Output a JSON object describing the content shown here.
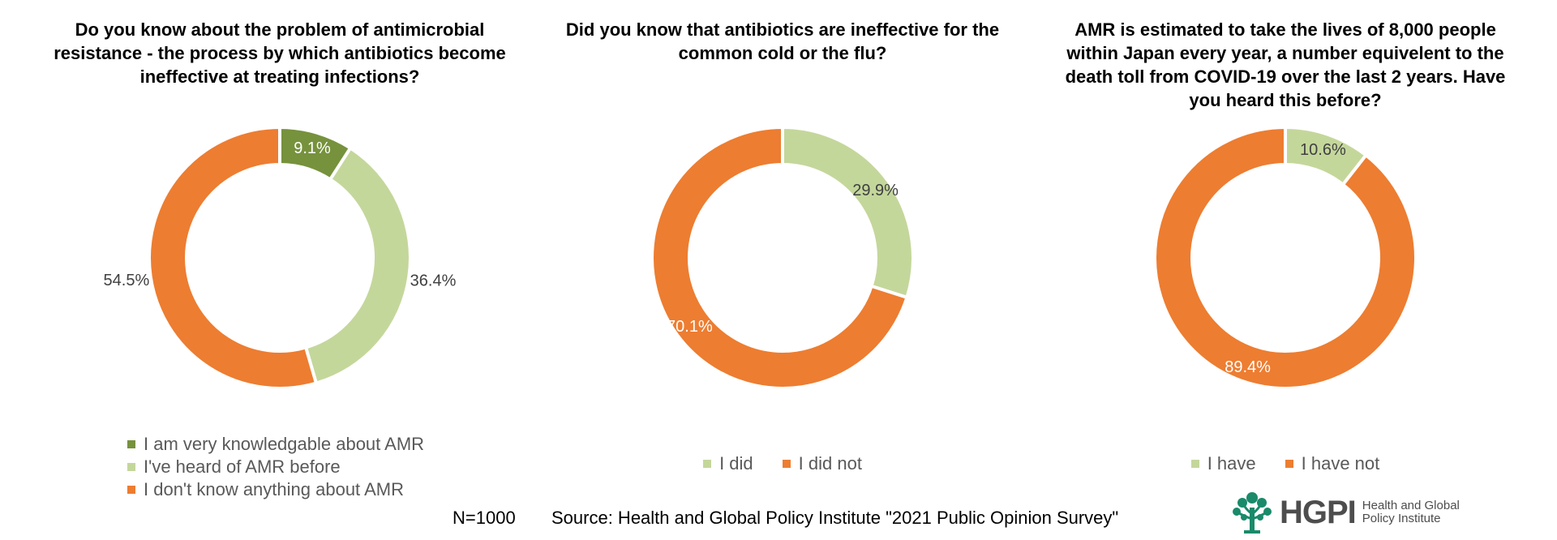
{
  "chart_data": [
    {
      "type": "donut",
      "title": "Do you know about the problem of antimicrobial resistance - the process by which antibiotics become ineffective at treating infections?",
      "slices": [
        {
          "label": "I am very knowledgable about AMR",
          "value": 9.1,
          "value_label": "9.1%",
          "color": "#76923c",
          "label_color": "#ffffff"
        },
        {
          "label": "I've heard of AMR before",
          "value": 36.4,
          "value_label": "36.4%",
          "color": "#c4d79b",
          "label_color": "#404040"
        },
        {
          "label": "I don't know anything about AMR",
          "value": 54.5,
          "value_label": "54.5%",
          "color": "#ed7d31",
          "label_color": "#404040"
        }
      ],
      "legend_position": "bottom"
    },
    {
      "type": "donut",
      "title": "Did you know that antibiotics are ineffective for the common cold or the flu?",
      "slices": [
        {
          "label": "I did",
          "value": 29.9,
          "value_label": "29.9%",
          "color": "#c4d79b",
          "label_color": "#404040"
        },
        {
          "label": "I did not",
          "value": 70.1,
          "value_label": "70.1%",
          "color": "#ed7d31",
          "label_color": "#ffffff"
        }
      ],
      "legend_position": "bottom"
    },
    {
      "type": "donut",
      "title": "AMR is estimated to take the lives of 8,000 people within Japan every year, a number equivelent to the death toll from COVID-19 over the last 2 years. Have you heard this before?",
      "slices": [
        {
          "label": "I have",
          "value": 10.6,
          "value_label": "10.6%",
          "color": "#c4d79b",
          "label_color": "#404040"
        },
        {
          "label": "I have not",
          "value": 89.4,
          "value_label": "89.4%",
          "color": "#ed7d31",
          "label_color": "#ffffff"
        }
      ],
      "legend_position": "bottom"
    }
  ],
  "footer": {
    "n": "N=1000",
    "source": "Source: Health and Global Policy Institute \"2021 Public Opinion Survey\""
  },
  "logo": {
    "text": "HGPI",
    "sub_line1": "Health and Global",
    "sub_line2": "Policy Institute",
    "color": "#1a8a6a"
  }
}
